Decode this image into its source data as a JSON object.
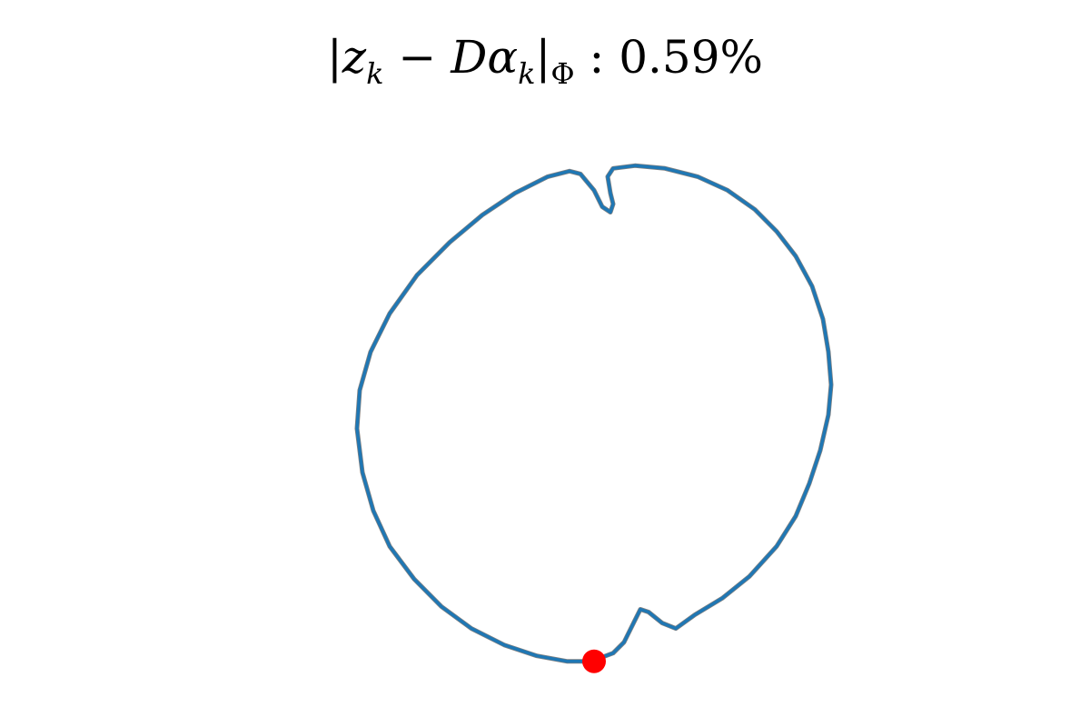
{
  "chart_data": {
    "type": "line",
    "title": {
      "open_bar": "|",
      "z": "z",
      "k1": "k",
      "minus": " − ",
      "D": "D",
      "alpha": "α",
      "k2": "k",
      "close_bar": "|",
      "phi": "Φ",
      "sep": " : ",
      "value": "0.59%"
    },
    "xlabel": "",
    "ylabel": "",
    "axes_visible": false,
    "grid": false,
    "legend": "none",
    "xlim": [
      -1.15,
      1.15
    ],
    "ylim": [
      -1.12,
      1.12
    ],
    "series": [
      {
        "role": "target",
        "color": "#808080",
        "points": [
          [
            0.12,
            -0.93
          ],
          [
            0.2,
            -0.9
          ],
          [
            0.24,
            -0.86
          ],
          [
            0.28,
            -0.78
          ],
          [
            0.3,
            -0.74
          ],
          [
            0.33,
            -0.75
          ],
          [
            0.38,
            -0.79
          ],
          [
            0.43,
            -0.81
          ],
          [
            0.5,
            -0.76
          ],
          [
            0.6,
            -0.7
          ],
          [
            0.7,
            -0.62
          ],
          [
            0.8,
            -0.51
          ],
          [
            0.87,
            -0.4
          ],
          [
            0.92,
            -0.28
          ],
          [
            0.96,
            -0.16
          ],
          [
            0.99,
            -0.03
          ],
          [
            1.0,
            0.08
          ],
          [
            0.99,
            0.2
          ],
          [
            0.97,
            0.32
          ],
          [
            0.93,
            0.44
          ],
          [
            0.87,
            0.55
          ],
          [
            0.8,
            0.64
          ],
          [
            0.72,
            0.72
          ],
          [
            0.62,
            0.79
          ],
          [
            0.51,
            0.84
          ],
          [
            0.39,
            0.87
          ],
          [
            0.28,
            0.88
          ],
          [
            0.2,
            0.87
          ],
          [
            0.18,
            0.84
          ],
          [
            0.19,
            0.78
          ],
          [
            0.2,
            0.74
          ],
          [
            0.19,
            0.71
          ],
          [
            0.16,
            0.73
          ],
          [
            0.13,
            0.79
          ],
          [
            0.08,
            0.85
          ],
          [
            0.04,
            0.86
          ],
          [
            -0.04,
            0.84
          ],
          [
            -0.16,
            0.78
          ],
          [
            -0.28,
            0.7
          ],
          [
            -0.4,
            0.6
          ],
          [
            -0.52,
            0.48
          ],
          [
            -0.62,
            0.34
          ],
          [
            -0.69,
            0.2
          ],
          [
            -0.73,
            0.06
          ],
          [
            -0.74,
            -0.08
          ],
          [
            -0.72,
            -0.24
          ],
          [
            -0.68,
            -0.38
          ],
          [
            -0.62,
            -0.51
          ],
          [
            -0.53,
            -0.63
          ],
          [
            -0.43,
            -0.73
          ],
          [
            -0.32,
            -0.81
          ],
          [
            -0.2,
            -0.87
          ],
          [
            -0.08,
            -0.91
          ],
          [
            0.03,
            -0.93
          ],
          [
            0.12,
            -0.93
          ]
        ]
      },
      {
        "role": "reconstruction",
        "color": "#1f77b4",
        "points": [
          [
            0.12,
            -0.93
          ],
          [
            0.2,
            -0.9
          ],
          [
            0.24,
            -0.86
          ],
          [
            0.28,
            -0.78
          ],
          [
            0.3,
            -0.74
          ],
          [
            0.33,
            -0.75
          ],
          [
            0.38,
            -0.79
          ],
          [
            0.43,
            -0.81
          ],
          [
            0.5,
            -0.76
          ],
          [
            0.6,
            -0.7
          ],
          [
            0.7,
            -0.62
          ],
          [
            0.8,
            -0.51
          ],
          [
            0.87,
            -0.4
          ],
          [
            0.92,
            -0.28
          ],
          [
            0.96,
            -0.16
          ],
          [
            0.99,
            -0.03
          ],
          [
            1.0,
            0.08
          ],
          [
            0.99,
            0.2
          ],
          [
            0.97,
            0.32
          ],
          [
            0.93,
            0.44
          ],
          [
            0.87,
            0.55
          ],
          [
            0.8,
            0.64
          ],
          [
            0.72,
            0.72
          ],
          [
            0.62,
            0.79
          ],
          [
            0.51,
            0.84
          ],
          [
            0.39,
            0.87
          ],
          [
            0.28,
            0.88
          ],
          [
            0.2,
            0.87
          ],
          [
            0.18,
            0.84
          ],
          [
            0.19,
            0.78
          ],
          [
            0.2,
            0.74
          ],
          [
            0.19,
            0.71
          ],
          [
            0.16,
            0.73
          ],
          [
            0.13,
            0.79
          ],
          [
            0.08,
            0.85
          ],
          [
            0.04,
            0.86
          ],
          [
            -0.04,
            0.84
          ],
          [
            -0.16,
            0.78
          ],
          [
            -0.28,
            0.7
          ],
          [
            -0.4,
            0.6
          ],
          [
            -0.52,
            0.48
          ],
          [
            -0.62,
            0.34
          ],
          [
            -0.69,
            0.2
          ],
          [
            -0.73,
            0.06
          ],
          [
            -0.74,
            -0.08
          ],
          [
            -0.72,
            -0.24
          ],
          [
            -0.68,
            -0.38
          ],
          [
            -0.62,
            -0.51
          ],
          [
            -0.53,
            -0.63
          ],
          [
            -0.43,
            -0.73
          ],
          [
            -0.32,
            -0.81
          ],
          [
            -0.2,
            -0.87
          ],
          [
            -0.08,
            -0.91
          ],
          [
            0.03,
            -0.93
          ],
          [
            0.12,
            -0.93
          ]
        ]
      }
    ],
    "marker": {
      "x": 0.13,
      "y": -0.93,
      "color": "#ff0000"
    }
  }
}
